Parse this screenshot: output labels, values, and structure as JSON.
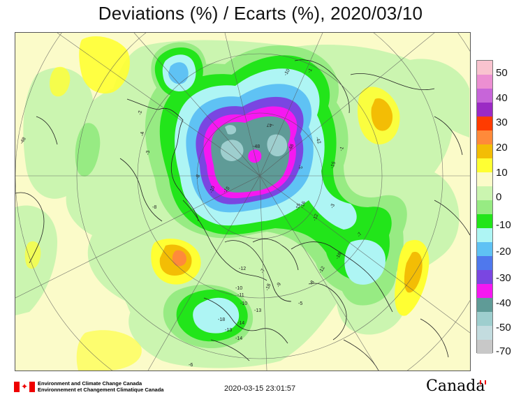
{
  "title": "Deviations (%) / Ecarts (%), 2020/03/10",
  "legend": {
    "labels": [
      "50",
      "40",
      "30",
      "20",
      "10",
      "0",
      "-10",
      "-20",
      "-30",
      "-40",
      "-50",
      "-70"
    ],
    "colors": [
      "#f9c3cf",
      "#ec8fd2",
      "#c765d9",
      "#9b2ac4",
      "#ff3b00",
      "#ff8a3a",
      "#f3bd05",
      "#ffff33",
      "#fbfbc9",
      "#cbf5b0",
      "#97eb83",
      "#22e51a",
      "#aef5f4",
      "#5fc2f4",
      "#4f78ed",
      "#7a46e1",
      "#f518f1",
      "#5f9b97",
      "#9ecece",
      "#c3dcdf",
      "#c8c8c8"
    ]
  },
  "map_labels": [
    "-10",
    "-15",
    "-16",
    "-12",
    "-13",
    "-14",
    "-8",
    "-11",
    "-18",
    "-6",
    "-5",
    "-9",
    "-2",
    "-1",
    "-7",
    "-3",
    "-4",
    "-48",
    "-47",
    "-42"
  ],
  "footer": {
    "department_en": "Environment and Climate Change Canada",
    "department_fr": "Environnement et Changement Climatique Canada",
    "timestamp": "2020-03-15 23:01:57",
    "wordmark": "Canada"
  }
}
